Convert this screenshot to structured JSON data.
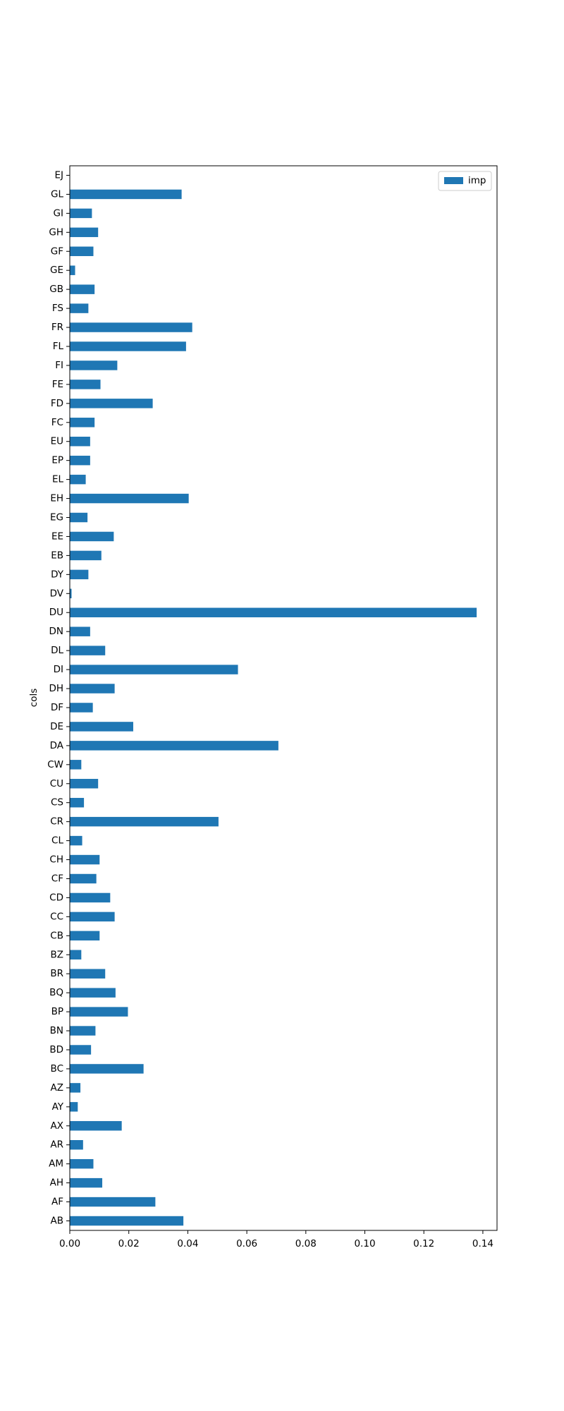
{
  "chart_data": {
    "type": "barh",
    "ylabel": "cols",
    "categories": [
      "AB",
      "AF",
      "AH",
      "AM",
      "AR",
      "AX",
      "AY",
      "AZ",
      "BC",
      "BD",
      "BN",
      "BP",
      "BQ",
      "BR",
      "BZ",
      "CB",
      "CC",
      "CD",
      "CF",
      "CH",
      "CL",
      "CR",
      "CS",
      "CU",
      "CW",
      "DA",
      "DE",
      "DF",
      "DH",
      "DI",
      "DL",
      "DN",
      "DU",
      "DV",
      "DY",
      "EB",
      "EE",
      "EG",
      "EH",
      "EL",
      "EP",
      "EU",
      "FC",
      "FD",
      "FE",
      "FI",
      "FL",
      "FR",
      "FS",
      "GB",
      "GE",
      "GF",
      "GH",
      "GI",
      "GL",
      "EJ"
    ],
    "series": [
      {
        "name": "imp",
        "color": "#1f77b4",
        "values": [
          0.0385,
          0.029,
          0.011,
          0.008,
          0.0045,
          0.0176,
          0.0027,
          0.0036,
          0.025,
          0.0072,
          0.0087,
          0.0197,
          0.0155,
          0.012,
          0.0039,
          0.0101,
          0.0152,
          0.0137,
          0.009,
          0.0101,
          0.0042,
          0.0504,
          0.0048,
          0.0096,
          0.0039,
          0.0707,
          0.0215,
          0.0078,
          0.0152,
          0.057,
          0.012,
          0.0069,
          0.1379,
          0.0006,
          0.0063,
          0.0107,
          0.0149,
          0.006,
          0.0403,
          0.0054,
          0.0069,
          0.0069,
          0.0084,
          0.0281,
          0.0104,
          0.0161,
          0.0394,
          0.0415,
          0.0063,
          0.0084,
          0.0018,
          0.008,
          0.0096,
          0.0075,
          0.0379,
          0
        ]
      }
    ],
    "xlim": [
      0,
      0.1448
    ],
    "xticks": [
      {
        "value": 0,
        "label": "0.00"
      },
      {
        "value": 0.02,
        "label": "0.02"
      },
      {
        "value": 0.04,
        "label": "0.04"
      },
      {
        "value": 0.06,
        "label": "0.06"
      },
      {
        "value": 0.08,
        "label": "0.08"
      },
      {
        "value": 0.1,
        "label": "0.10"
      },
      {
        "value": 0.12,
        "label": "0.12"
      },
      {
        "value": 0.14,
        "label": "0.14"
      }
    ],
    "grid": false,
    "legend": "upper right"
  }
}
